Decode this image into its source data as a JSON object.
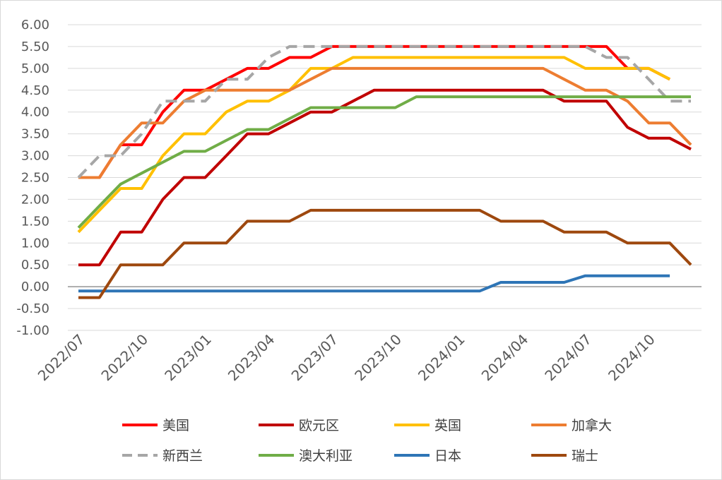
{
  "chart_data": {
    "type": "line",
    "title": "",
    "xlabel": "",
    "ylabel": "",
    "ylim": [
      -1,
      6
    ],
    "ytick_step": 0.5,
    "y_tick_decimals": 2,
    "grid": "horizontal",
    "legend_position": "bottom",
    "x_tick_labels": [
      "2022/07",
      "2022/10",
      "2023/01",
      "2023/04",
      "2023/07",
      "2023/10",
      "2024/01",
      "2024/04",
      "2024/07",
      "2024/10"
    ],
    "x": [
      "2022/07",
      "2022/08",
      "2022/09",
      "2022/10",
      "2022/11",
      "2022/12",
      "2023/01",
      "2023/02",
      "2023/03",
      "2023/04",
      "2023/05",
      "2023/06",
      "2023/07",
      "2023/08",
      "2023/09",
      "2023/10",
      "2023/11",
      "2023/12",
      "2024/01",
      "2024/02",
      "2024/03",
      "2024/04",
      "2024/05",
      "2024/06",
      "2024/07",
      "2024/08",
      "2024/09",
      "2024/10",
      "2024/11",
      "2024/12"
    ],
    "series": [
      {
        "name": "美国",
        "color": "#FF0000",
        "dash": false,
        "values": [
          2.5,
          2.5,
          3.25,
          3.25,
          4.0,
          4.5,
          4.5,
          4.75,
          5.0,
          5.0,
          5.25,
          5.25,
          5.5,
          5.5,
          5.5,
          5.5,
          5.5,
          5.5,
          5.5,
          5.5,
          5.5,
          5.5,
          5.5,
          5.5,
          5.5,
          5.5,
          5.0,
          5.0,
          4.75,
          null
        ]
      },
      {
        "name": "欧元区",
        "color": "#C00000",
        "dash": false,
        "values": [
          0.5,
          0.5,
          1.25,
          1.25,
          2.0,
          2.5,
          2.5,
          3.0,
          3.5,
          3.5,
          3.75,
          4.0,
          4.0,
          4.25,
          4.5,
          4.5,
          4.5,
          4.5,
          4.5,
          4.5,
          4.5,
          4.5,
          4.5,
          4.25,
          4.25,
          4.25,
          3.65,
          3.4,
          3.4,
          3.15
        ]
      },
      {
        "name": "英国",
        "color": "#FFC000",
        "dash": false,
        "values": [
          1.25,
          1.75,
          2.25,
          2.25,
          3.0,
          3.5,
          3.5,
          4.0,
          4.25,
          4.25,
          4.5,
          5.0,
          5.0,
          5.25,
          5.25,
          5.25,
          5.25,
          5.25,
          5.25,
          5.25,
          5.25,
          5.25,
          5.25,
          5.25,
          5.0,
          5.0,
          5.0,
          5.0,
          4.75,
          null
        ]
      },
      {
        "name": "加拿大",
        "color": "#ED7D31",
        "dash": false,
        "values": [
          2.5,
          2.5,
          3.25,
          3.75,
          3.75,
          4.25,
          4.5,
          4.5,
          4.5,
          4.5,
          4.5,
          4.75,
          5.0,
          5.0,
          5.0,
          5.0,
          5.0,
          5.0,
          5.0,
          5.0,
          5.0,
          5.0,
          5.0,
          4.75,
          4.5,
          4.5,
          4.25,
          3.75,
          3.75,
          3.25
        ]
      },
      {
        "name": "新西兰",
        "color": "#A6A6A6",
        "dash": true,
        "values": [
          2.5,
          3.0,
          3.0,
          3.5,
          4.25,
          4.25,
          4.25,
          4.75,
          4.75,
          5.25,
          5.5,
          5.5,
          5.5,
          5.5,
          5.5,
          5.5,
          5.5,
          5.5,
          5.5,
          5.5,
          5.5,
          5.5,
          5.5,
          5.5,
          5.5,
          5.25,
          5.25,
          4.75,
          4.25,
          4.25
        ]
      },
      {
        "name": "澳大利亚",
        "color": "#70AD47",
        "dash": false,
        "values": [
          1.35,
          1.85,
          2.35,
          2.6,
          2.85,
          3.1,
          3.1,
          3.35,
          3.6,
          3.6,
          3.85,
          4.1,
          4.1,
          4.1,
          4.1,
          4.1,
          4.35,
          4.35,
          4.35,
          4.35,
          4.35,
          4.35,
          4.35,
          4.35,
          4.35,
          4.35,
          4.35,
          4.35,
          4.35,
          4.35
        ]
      },
      {
        "name": "日本",
        "color": "#2E75B6",
        "dash": false,
        "values": [
          -0.1,
          -0.1,
          -0.1,
          -0.1,
          -0.1,
          -0.1,
          -0.1,
          -0.1,
          -0.1,
          -0.1,
          -0.1,
          -0.1,
          -0.1,
          -0.1,
          -0.1,
          -0.1,
          -0.1,
          -0.1,
          -0.1,
          -0.1,
          0.1,
          0.1,
          0.1,
          0.1,
          0.25,
          0.25,
          0.25,
          0.25,
          0.25,
          null
        ]
      },
      {
        "name": "瑞士",
        "color": "#9E480E",
        "dash": false,
        "values": [
          -0.25,
          -0.25,
          0.5,
          0.5,
          0.5,
          1.0,
          1.0,
          1.0,
          1.5,
          1.5,
          1.5,
          1.75,
          1.75,
          1.75,
          1.75,
          1.75,
          1.75,
          1.75,
          1.75,
          1.75,
          1.5,
          1.5,
          1.5,
          1.25,
          1.25,
          1.25,
          1.0,
          1.0,
          1.0,
          0.5
        ]
      }
    ]
  }
}
